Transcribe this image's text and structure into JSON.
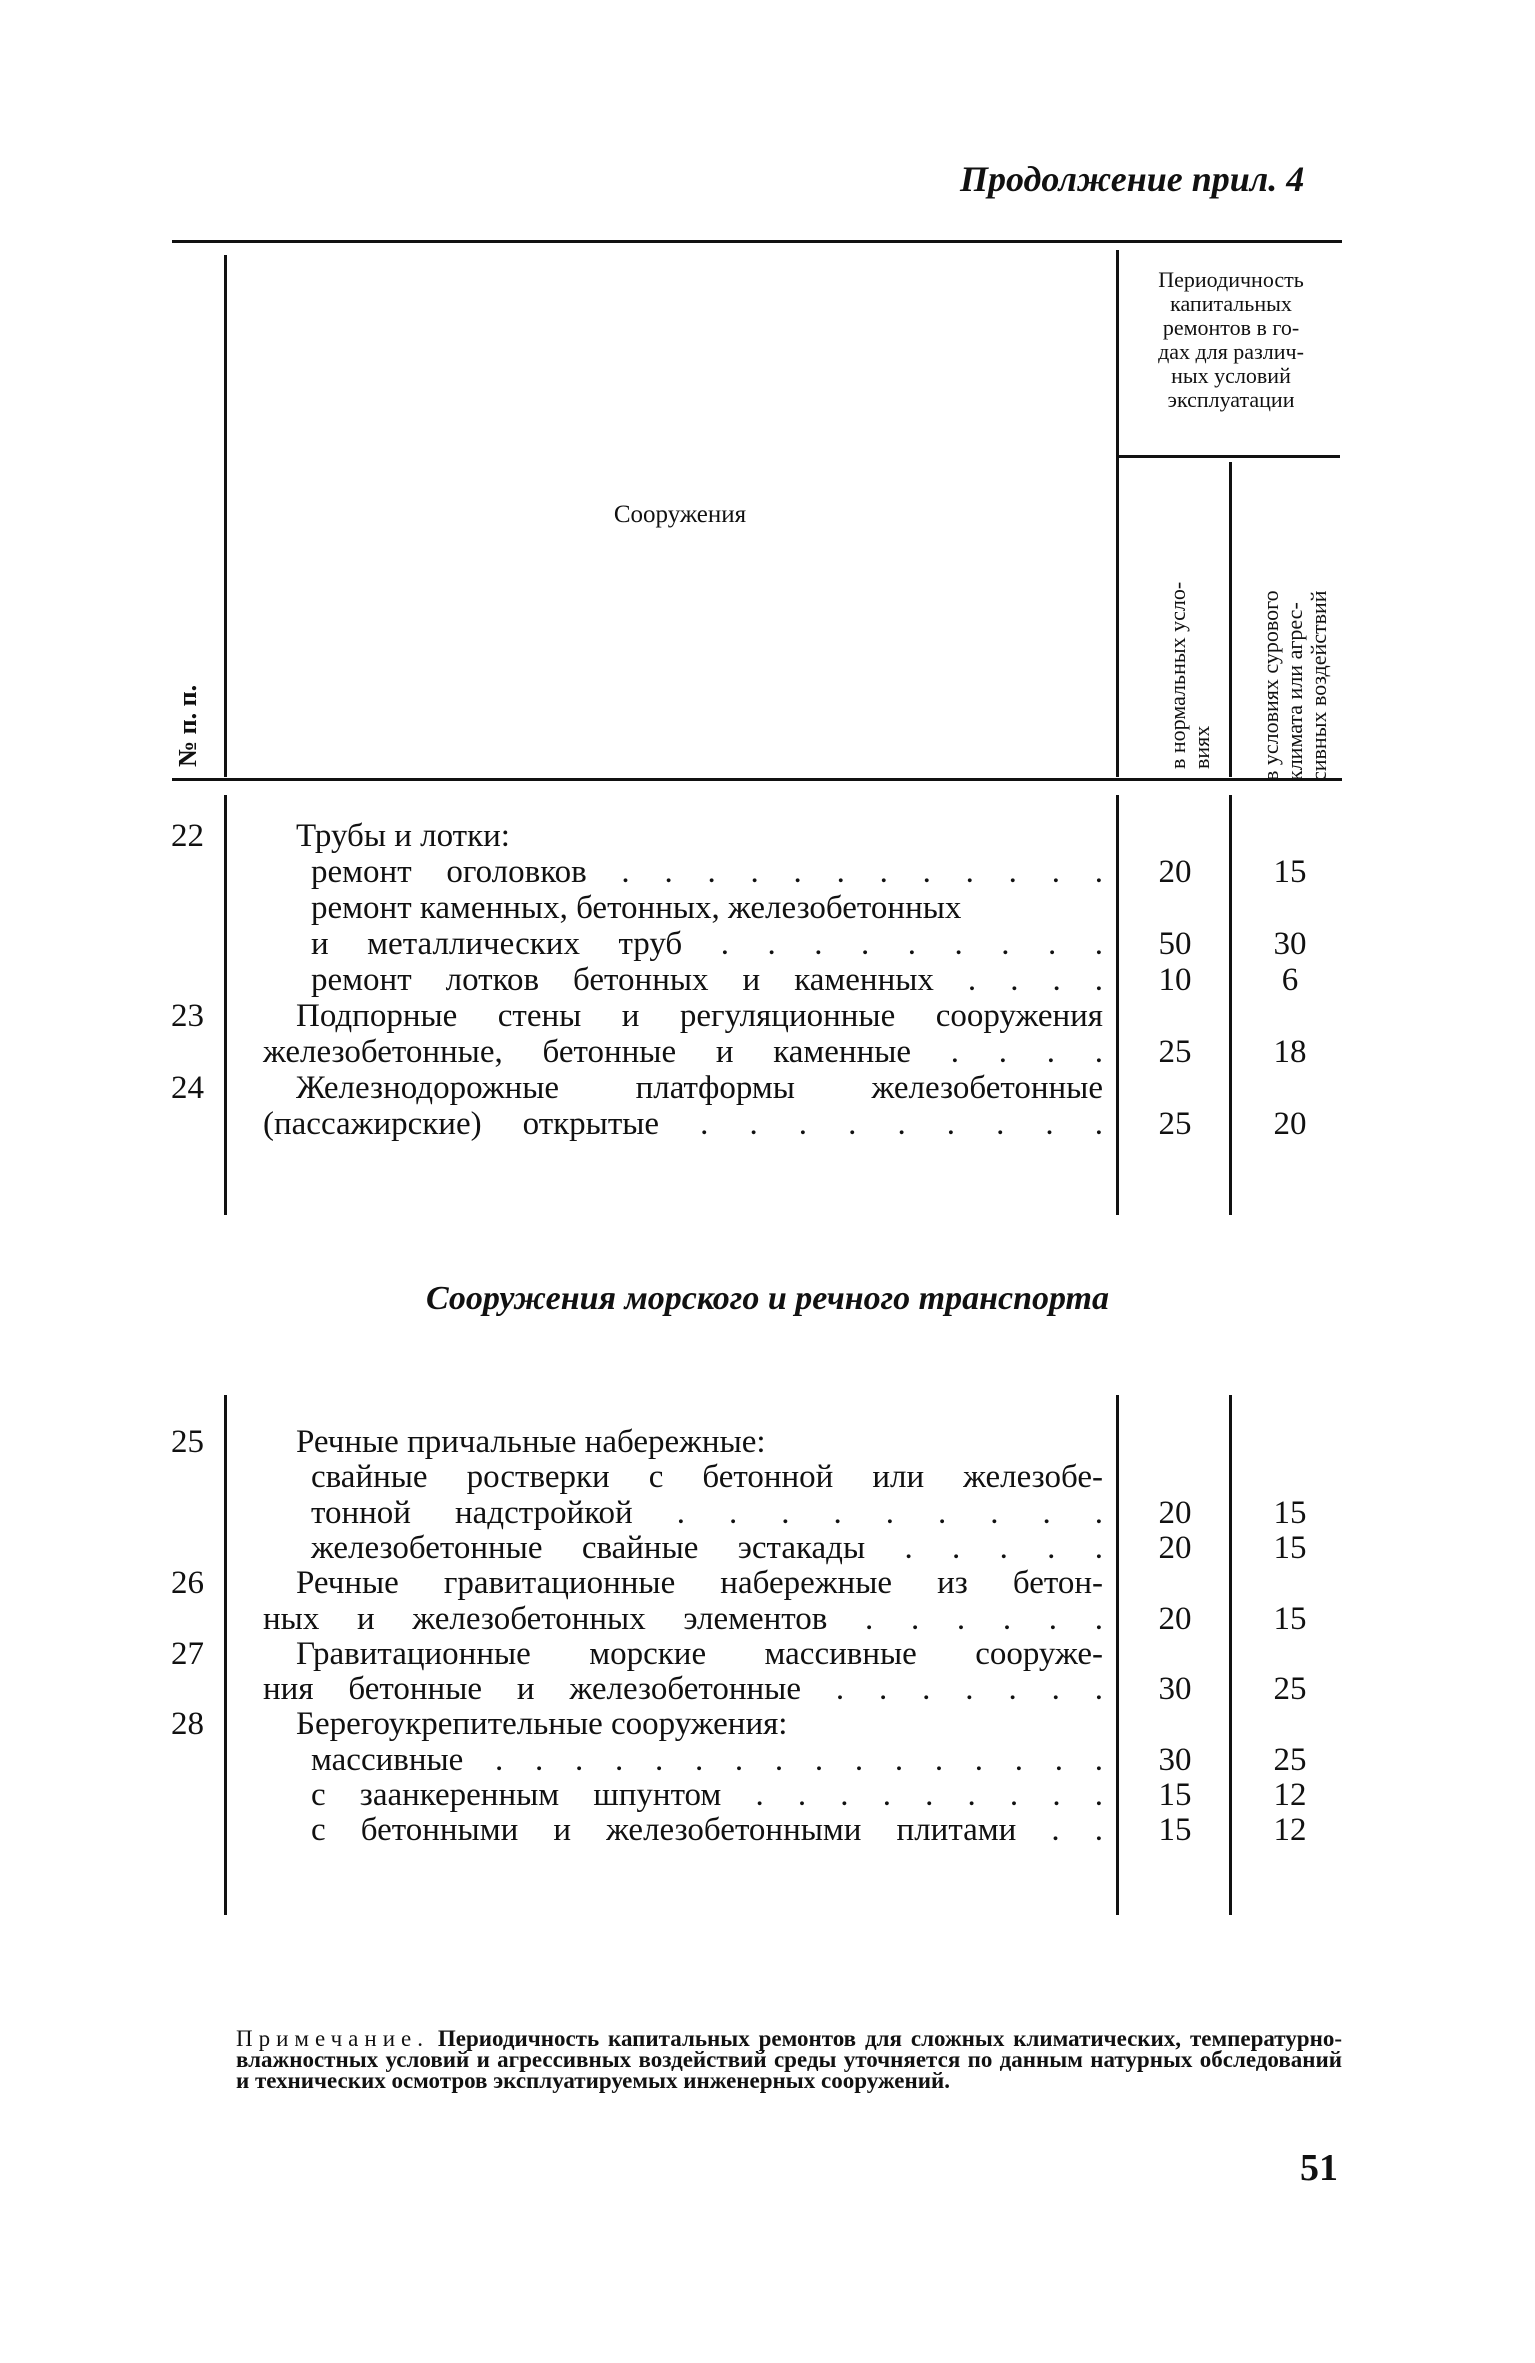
{
  "header": {
    "continuation": "Продолжение прил. 4"
  },
  "table_header": {
    "num_col": "№ п. п.",
    "structure_col": "Сооружения",
    "period_col": [
      "Периодичность",
      "капитальных",
      "ремонтов в го-",
      "дах для различ-",
      "ных условий",
      "эксплуатации"
    ],
    "normal_col": [
      "в нормальных усло-",
      "виях"
    ],
    "severe_col": [
      "в условиях сурового",
      "климата или агрес-",
      "сивных воздействий"
    ]
  },
  "table1": [
    {
      "num": "22",
      "text": "Трубы и лотки:",
      "indent": "cat"
    },
    {
      "text": "ремонт оголовков . . . . . . . . . . . .",
      "indent": "sub",
      "normal": "20",
      "severe": "15"
    },
    {
      "text": "ремонт каменных, бетонных, железобетонных",
      "indent": "sub"
    },
    {
      "text": "и металлических труб . . . . . . . . .",
      "indent": "sub",
      "normal": "50",
      "severe": "30"
    },
    {
      "text": "ремонт лотков бетонных и каменных . . . .",
      "indent": "sub",
      "normal": "10",
      "severe": "6"
    },
    {
      "num": "23",
      "text": "Подпорные стены и регуляционные сооружения",
      "indent": "cat"
    },
    {
      "text": "железобетонные, бетонные и каменные . . . .",
      "indent": "cont",
      "normal": "25",
      "severe": "18"
    },
    {
      "num": "24",
      "text": "Железнодорожные платформы железобетонные",
      "indent": "cat"
    },
    {
      "text": "(пассажирские) открытые . . . . . . . . .",
      "indent": "cont",
      "normal": "25",
      "severe": "20"
    }
  ],
  "section_title": "Сооружения морского и речного транспорта",
  "table2": [
    {
      "num": "25",
      "text": "Речные причальные набережные:",
      "indent": "cat"
    },
    {
      "text": "свайные ростверки с бетонной или железобе-",
      "indent": "sub"
    },
    {
      "text": "тонной надстройкой . . . . . . . . .",
      "indent": "sub",
      "normal": "20",
      "severe": "15"
    },
    {
      "text": "железобетонные свайные эстакады . . . . .",
      "indent": "sub",
      "normal": "20",
      "severe": "15"
    },
    {
      "num": "26",
      "text": "Речные гравитационные набережные из бетон-",
      "indent": "cat"
    },
    {
      "text": "ных и железобетонных элементов . . . . . .",
      "indent": "cont",
      "normal": "20",
      "severe": "15"
    },
    {
      "num": "27",
      "text": "Гравитационные морские массивные сооруже-",
      "indent": "cat"
    },
    {
      "text": "ния бетонные и железобетонные . . . . . . .",
      "indent": "cont",
      "normal": "30",
      "severe": "25"
    },
    {
      "num": "28",
      "text": "Берегоукрепительные сооружения:",
      "indent": "cat"
    },
    {
      "text": "массивные . . . . . . . . . . . . . . . .",
      "indent": "sub",
      "normal": "30",
      "severe": "25"
    },
    {
      "text": "с заанкеренным шпунтом . . . . . . . . .",
      "indent": "sub",
      "normal": "15",
      "severe": "12"
    },
    {
      "text": "с бетонными и железобетонными плитами . .",
      "indent": "sub",
      "normal": "15",
      "severe": "12"
    }
  ],
  "note": {
    "label": "Примечание.",
    "text": " Периодичность капитальных ремонтов для сложных климатических, температурно-влажностных условий и агрессивных воздействий среды уточняется по данным натурных обследований и технических осмотров эксплуатируемых инженерных сооружений."
  },
  "page_number": "51"
}
